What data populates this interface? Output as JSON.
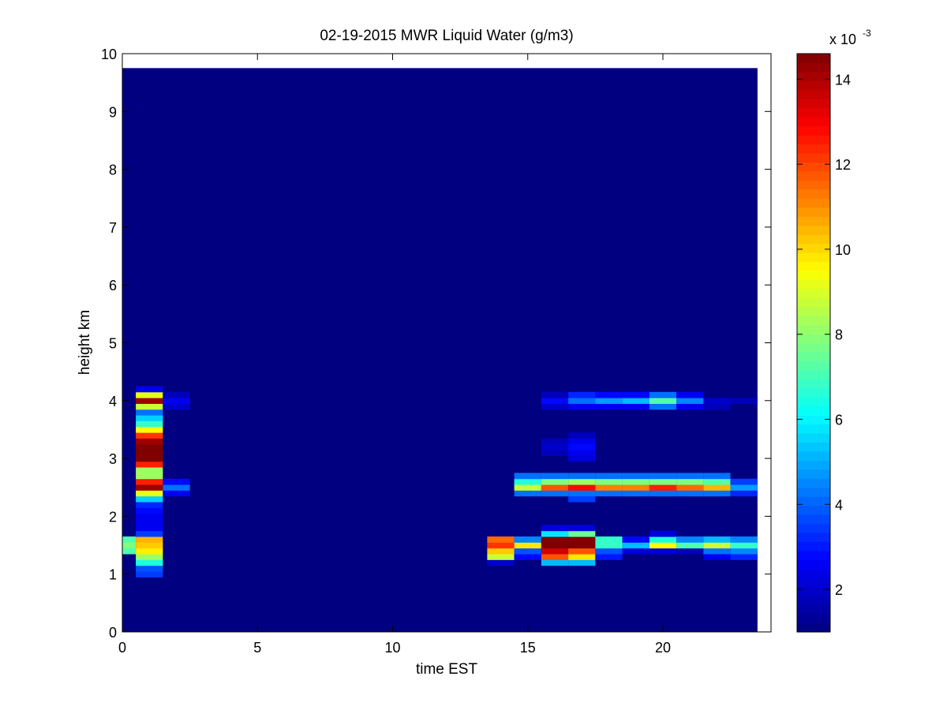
{
  "chart_data": {
    "type": "heatmap",
    "title": "02-19-2015 MWR Liquid Water (g/m3)",
    "xlabel": "time EST",
    "ylabel": "height km",
    "xlim": [
      0,
      24
    ],
    "ylim": [
      0,
      10
    ],
    "xticks": [
      0,
      5,
      10,
      15,
      20
    ],
    "yticks": [
      0,
      1,
      2,
      3,
      4,
      5,
      6,
      7,
      8,
      9,
      10
    ],
    "colormap": "jet",
    "colorbar": {
      "range": [
        0.001,
        0.0146
      ],
      "ticks": [
        0.002,
        0.004,
        0.006,
        0.008,
        0.01,
        0.012,
        0.014
      ],
      "tick_labels": [
        "2",
        "4",
        "6",
        "8",
        "10",
        "12",
        "14"
      ],
      "exponent_label": "x 10",
      "exponent": "-3"
    },
    "data_extent": {
      "x": [
        0,
        23.5
      ],
      "y": [
        0,
        9.75
      ]
    },
    "background_value": 0.001,
    "time_bins": [
      0,
      1,
      2,
      3,
      4,
      5,
      6,
      7,
      8,
      9,
      10,
      11,
      12,
      13,
      14,
      15,
      16,
      17,
      18,
      19,
      20,
      21,
      22,
      23
    ],
    "height_bins_km": [
      1.0,
      1.1,
      1.2,
      1.3,
      1.4,
      1.5,
      1.6,
      1.7,
      1.8,
      1.9,
      2.0,
      2.1,
      2.2,
      2.3,
      2.4,
      2.5,
      2.6,
      2.7,
      2.8,
      2.9,
      3.0,
      3.1,
      3.2,
      3.3,
      3.4,
      3.5,
      3.6,
      3.7,
      3.8,
      3.9,
      4.0,
      4.1,
      4.2
    ],
    "values": [
      {
        "t": 0,
        "h": [
          [
            1.5,
            0.0078
          ],
          [
            1.4,
            0.0072
          ],
          [
            1.6,
            0.0072
          ]
        ]
      },
      {
        "t": 1,
        "h": [
          [
            1.0,
            0.0035
          ],
          [
            1.1,
            0.0038
          ],
          [
            1.2,
            0.0065
          ],
          [
            1.3,
            0.0082
          ],
          [
            1.4,
            0.0097
          ],
          [
            1.5,
            0.0102
          ],
          [
            1.6,
            0.0105
          ],
          [
            1.7,
            0.0035
          ],
          [
            1.8,
            0.0025
          ],
          [
            1.9,
            0.0025
          ],
          [
            2.0,
            0.0025
          ],
          [
            2.1,
            0.0028
          ],
          [
            2.2,
            0.0032
          ],
          [
            2.3,
            0.0055
          ],
          [
            2.4,
            0.0092
          ],
          [
            2.5,
            0.0142
          ],
          [
            2.6,
            0.0125
          ],
          [
            2.7,
            0.0082
          ],
          [
            2.8,
            0.0082
          ],
          [
            2.9,
            0.0125
          ],
          [
            3.0,
            0.0152
          ],
          [
            3.1,
            0.0152
          ],
          [
            3.2,
            0.0152
          ],
          [
            3.3,
            0.0142
          ],
          [
            3.4,
            0.0122
          ],
          [
            3.5,
            0.0095
          ],
          [
            3.6,
            0.0068
          ],
          [
            3.7,
            0.0055
          ],
          [
            3.8,
            0.0042
          ],
          [
            3.9,
            0.0088
          ],
          [
            4.0,
            0.0142
          ],
          [
            4.1,
            0.0092
          ],
          [
            4.2,
            0.0025
          ]
        ]
      },
      {
        "t": 2,
        "h": [
          [
            2.4,
            0.0025
          ],
          [
            2.5,
            0.0042
          ],
          [
            2.6,
            0.0028
          ],
          [
            3.9,
            0.002
          ],
          [
            4.0,
            0.0025
          ],
          [
            4.1,
            0.0018
          ]
        ]
      },
      {
        "t": 14,
        "h": [
          [
            1.2,
            0.002
          ],
          [
            1.3,
            0.0088
          ],
          [
            1.4,
            0.0102
          ],
          [
            1.5,
            0.0122
          ],
          [
            1.6,
            0.0115
          ]
        ]
      },
      {
        "t": 15,
        "h": [
          [
            1.3,
            0.0028
          ],
          [
            1.4,
            0.0038
          ],
          [
            1.5,
            0.0098
          ],
          [
            1.6,
            0.0045
          ],
          [
            2.4,
            0.0042
          ],
          [
            2.5,
            0.0088
          ],
          [
            2.6,
            0.0065
          ],
          [
            2.7,
            0.0042
          ]
        ]
      },
      {
        "t": 16,
        "h": [
          [
            1.2,
            0.0052
          ],
          [
            1.3,
            0.0118
          ],
          [
            1.4,
            0.0135
          ],
          [
            1.5,
            0.0152
          ],
          [
            1.6,
            0.015
          ],
          [
            1.7,
            0.0058
          ],
          [
            1.8,
            0.0022
          ],
          [
            2.4,
            0.0042
          ],
          [
            2.5,
            0.0118
          ],
          [
            2.6,
            0.0078
          ],
          [
            2.7,
            0.0042
          ],
          [
            3.1,
            0.0018
          ],
          [
            3.2,
            0.002
          ],
          [
            3.3,
            0.0018
          ],
          [
            3.9,
            0.002
          ],
          [
            4.0,
            0.0028
          ],
          [
            4.1,
            0.0018
          ]
        ]
      },
      {
        "t": 17,
        "h": [
          [
            1.2,
            0.0052
          ],
          [
            1.3,
            0.0098
          ],
          [
            1.4,
            0.0118
          ],
          [
            1.5,
            0.0152
          ],
          [
            1.6,
            0.015
          ],
          [
            1.7,
            0.0075
          ],
          [
            1.8,
            0.0022
          ],
          [
            2.3,
            0.0035
          ],
          [
            2.4,
            0.0042
          ],
          [
            2.5,
            0.0128
          ],
          [
            2.6,
            0.0082
          ],
          [
            2.7,
            0.0042
          ],
          [
            3.0,
            0.0022
          ],
          [
            3.1,
            0.0025
          ],
          [
            3.2,
            0.0028
          ],
          [
            3.3,
            0.0025
          ],
          [
            3.4,
            0.0018
          ],
          [
            3.9,
            0.0025
          ],
          [
            4.0,
            0.0042
          ],
          [
            4.1,
            0.0032
          ]
        ]
      },
      {
        "t": 18,
        "h": [
          [
            1.3,
            0.003
          ],
          [
            1.4,
            0.0038
          ],
          [
            1.5,
            0.0068
          ],
          [
            1.6,
            0.0068
          ],
          [
            2.4,
            0.0042
          ],
          [
            2.5,
            0.0112
          ],
          [
            2.6,
            0.0078
          ],
          [
            2.7,
            0.0042
          ],
          [
            3.9,
            0.0025
          ],
          [
            4.0,
            0.0048
          ],
          [
            4.1,
            0.0028
          ]
        ]
      },
      {
        "t": 19,
        "h": [
          [
            1.4,
            0.0022
          ],
          [
            1.5,
            0.0052
          ],
          [
            1.6,
            0.0028
          ],
          [
            2.4,
            0.0042
          ],
          [
            2.5,
            0.0112
          ],
          [
            2.6,
            0.0078
          ],
          [
            2.7,
            0.0042
          ],
          [
            3.9,
            0.0025
          ],
          [
            4.0,
            0.0052
          ],
          [
            4.1,
            0.0028
          ]
        ]
      },
      {
        "t": 20,
        "h": [
          [
            1.4,
            0.0022
          ],
          [
            1.5,
            0.0095
          ],
          [
            1.6,
            0.0065
          ],
          [
            1.7,
            0.0022
          ],
          [
            2.4,
            0.0042
          ],
          [
            2.5,
            0.0125
          ],
          [
            2.6,
            0.0078
          ],
          [
            2.7,
            0.0042
          ],
          [
            3.9,
            0.0042
          ],
          [
            4.0,
            0.0072
          ],
          [
            4.1,
            0.0042
          ]
        ]
      },
      {
        "t": 21,
        "h": [
          [
            1.4,
            0.0018
          ],
          [
            1.5,
            0.0072
          ],
          [
            1.6,
            0.0045
          ],
          [
            2.4,
            0.0042
          ],
          [
            2.5,
            0.0115
          ],
          [
            2.6,
            0.0078
          ],
          [
            2.7,
            0.0042
          ],
          [
            3.9,
            0.0025
          ],
          [
            4.0,
            0.0045
          ],
          [
            4.1,
            0.0025
          ]
        ]
      },
      {
        "t": 22,
        "h": [
          [
            1.3,
            0.0025
          ],
          [
            1.4,
            0.0042
          ],
          [
            1.5,
            0.0088
          ],
          [
            1.6,
            0.0052
          ],
          [
            2.4,
            0.0042
          ],
          [
            2.5,
            0.0105
          ],
          [
            2.6,
            0.0072
          ],
          [
            2.7,
            0.0042
          ],
          [
            3.9,
            0.0018
          ],
          [
            4.0,
            0.002
          ]
        ]
      },
      {
        "t": 23,
        "h": [
          [
            1.3,
            0.0032
          ],
          [
            1.4,
            0.0045
          ],
          [
            1.5,
            0.0068
          ],
          [
            1.6,
            0.0045
          ],
          [
            2.4,
            0.0032
          ],
          [
            2.5,
            0.0048
          ],
          [
            2.6,
            0.0035
          ],
          [
            4.0,
            0.0018
          ]
        ]
      }
    ]
  }
}
